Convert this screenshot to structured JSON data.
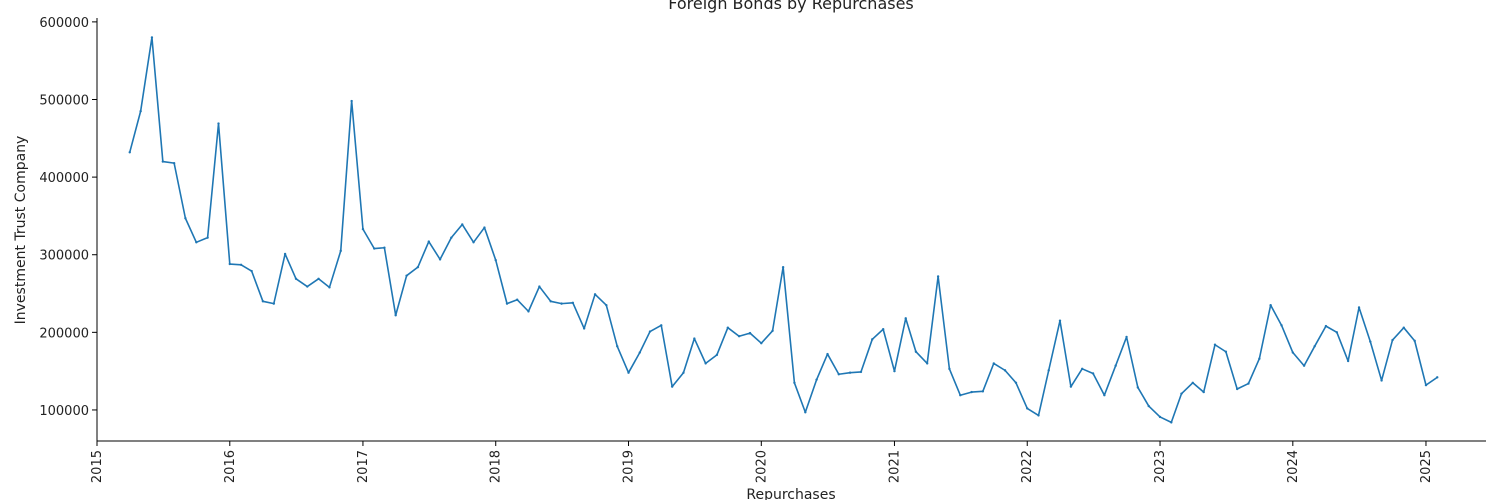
{
  "chart_data": {
    "type": "line",
    "title": "Foreign Bonds by Repurchases",
    "xlabel": "Repurchases",
    "ylabel": "Investment Trust Company",
    "xlim": [
      "2015-01-01",
      "2025-06-15"
    ],
    "ylim": [
      60000,
      605000
    ],
    "x_ticks": [
      "2015",
      "2016",
      "2017",
      "2018",
      "2019",
      "2020",
      "2021",
      "2022",
      "2023",
      "2024",
      "2025"
    ],
    "y_ticks": [
      100000,
      200000,
      300000,
      400000,
      500000,
      600000
    ],
    "grid": false,
    "legend": "none",
    "series": [
      {
        "color": "#1f77b4",
        "x": [
          "2015-04",
          "2015-05",
          "2015-06",
          "2015-07",
          "2015-08",
          "2015-09",
          "2015-10",
          "2015-11",
          "2015-12",
          "2016-01",
          "2016-02",
          "2016-03",
          "2016-04",
          "2016-05",
          "2016-06",
          "2016-07",
          "2016-08",
          "2016-09",
          "2016-10",
          "2016-11",
          "2016-12",
          "2017-01",
          "2017-02",
          "2017-03",
          "2017-04",
          "2017-05",
          "2017-06",
          "2017-07",
          "2017-08",
          "2017-09",
          "2017-10",
          "2017-11",
          "2017-12",
          "2018-01",
          "2018-02",
          "2018-03",
          "2018-04",
          "2018-05",
          "2018-06",
          "2018-07",
          "2018-08",
          "2018-09",
          "2018-10",
          "2018-11",
          "2018-12",
          "2019-01",
          "2019-02",
          "2019-03",
          "2019-04",
          "2019-05",
          "2019-06",
          "2019-07",
          "2019-08",
          "2019-09",
          "2019-10",
          "2019-11",
          "2019-12",
          "2020-01",
          "2020-02",
          "2020-03",
          "2020-04",
          "2020-05",
          "2020-06",
          "2020-07",
          "2020-08",
          "2020-09",
          "2020-10",
          "2020-11",
          "2020-12",
          "2021-01",
          "2021-02",
          "2021-03",
          "2021-04",
          "2021-05",
          "2021-06",
          "2021-07",
          "2021-08",
          "2021-09",
          "2021-10",
          "2021-11",
          "2021-12",
          "2022-01",
          "2022-02",
          "2022-03",
          "2022-04",
          "2022-05",
          "2022-06",
          "2022-07",
          "2022-08",
          "2022-09",
          "2022-10",
          "2022-11",
          "2022-12",
          "2023-01",
          "2023-02",
          "2023-03",
          "2023-04",
          "2023-05",
          "2023-06",
          "2023-07",
          "2023-08",
          "2023-09",
          "2023-10",
          "2023-11",
          "2023-12",
          "2024-01",
          "2024-02",
          "2024-03",
          "2024-04",
          "2024-05",
          "2024-06",
          "2024-07",
          "2024-08",
          "2024-09",
          "2024-10",
          "2024-11",
          "2024-12",
          "2025-01",
          "2025-02"
        ],
        "values": [
          432000,
          485000,
          580000,
          420000,
          418000,
          347000,
          316000,
          322000,
          469000,
          288000,
          287000,
          279000,
          240000,
          237000,
          301000,
          269000,
          259000,
          269000,
          258000,
          305000,
          498000,
          333000,
          308000,
          309000,
          222000,
          273000,
          284000,
          317000,
          294000,
          322000,
          339000,
          316000,
          335000,
          293000,
          237000,
          242000,
          227000,
          259000,
          240000,
          237000,
          238000,
          205000,
          249000,
          235000,
          182000,
          148000,
          174000,
          201000,
          209000,
          130000,
          148000,
          192000,
          160000,
          171000,
          206000,
          195000,
          199000,
          186000,
          202000,
          284000,
          135000,
          97000,
          139000,
          172000,
          146000,
          148000,
          149000,
          191000,
          204000,
          150000,
          218000,
          175000,
          160000,
          272000,
          153000,
          119000,
          123000,
          124000,
          160000,
          151000,
          135000,
          102000,
          93000,
          151000,
          215000,
          130000,
          153000,
          147000,
          119000,
          157000,
          194000,
          129000,
          105000,
          91000,
          84000,
          121000,
          135000,
          123000,
          184000,
          175000,
          127000,
          134000,
          166000,
          235000,
          209000,
          174000,
          157000,
          182000,
          208000,
          200000,
          163000,
          232000,
          188000,
          138000,
          190000,
          206000,
          189000,
          132000,
          142000
        ]
      }
    ]
  }
}
